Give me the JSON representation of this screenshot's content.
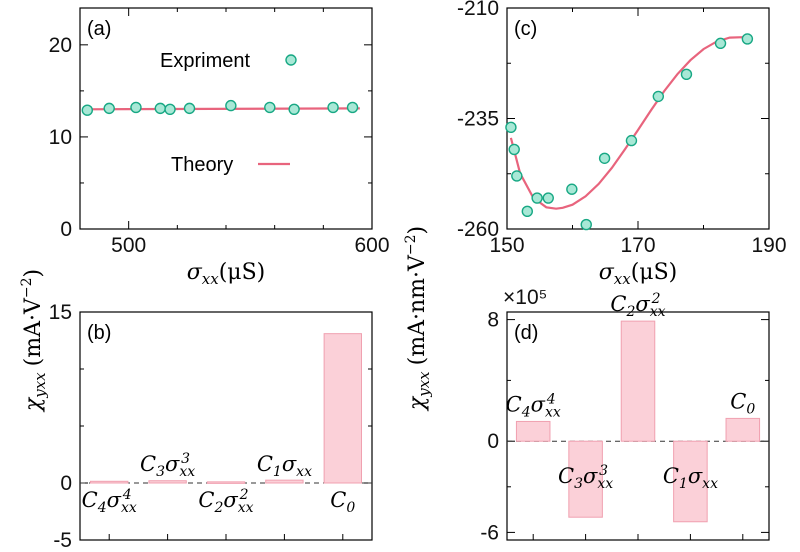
{
  "colors": {
    "curve": "#e8647d",
    "point_fill": "#a8e8d6",
    "point_stroke": "#18a884",
    "bar_fill": "#fbd0d8",
    "bar_stroke": "#f0a0b0"
  },
  "shared": {
    "ylabel_left": "χ_yxx (mA·V⁻²)",
    "ylabel_right": "χ_yxx (mA·nm·V⁻²)",
    "xlabel": "σ_xx(μS)"
  },
  "chart_data": [
    {
      "id": "a",
      "panel_label": "(a)",
      "type": "scatter",
      "xlim": [
        480,
        600
      ],
      "ylim": [
        0,
        24
      ],
      "x_ticks": [
        500,
        600
      ],
      "x_ticklabels": [
        "500",
        "600"
      ],
      "x_minor_ticks": [
        520,
        540,
        560,
        580
      ],
      "y_ticks": [
        0,
        10,
        20
      ],
      "y_ticklabels": [
        "0",
        "10",
        "20"
      ],
      "y_minor_ticks": [
        5,
        15
      ],
      "xlabel": "σxx(μS)",
      "series": [
        {
          "name": "Expriment",
          "kind": "points",
          "x": [
            483,
            492,
            503,
            513,
            517,
            525,
            542,
            558,
            568,
            584,
            592
          ],
          "y": [
            12.9,
            13.1,
            13.2,
            13.1,
            13.0,
            13.1,
            13.4,
            13.2,
            13.0,
            13.2,
            13.2
          ]
        },
        {
          "name": "Theory",
          "kind": "line",
          "x": [
            481,
            595
          ],
          "y": [
            13.0,
            13.1
          ]
        }
      ],
      "legend": [
        {
          "label": "Expriment",
          "marker": "circle"
        },
        {
          "label": "Theory",
          "marker": "line"
        }
      ]
    },
    {
      "id": "b",
      "panel_label": "(b)",
      "type": "bar",
      "ylim": [
        -5,
        15
      ],
      "y_ticks": [
        -5,
        0,
        15
      ],
      "y_ticklabels": [
        "-5",
        "0",
        "15"
      ],
      "y_minor_ticks": [
        5,
        10
      ],
      "categories": [
        "C4σxx^4",
        "C3σxx^3",
        "C2σxx^2",
        "C1σxx",
        "C0"
      ],
      "values": [
        0.15,
        0.2,
        0.1,
        0.25,
        13.1
      ]
    },
    {
      "id": "c",
      "panel_label": "(c)",
      "type": "scatter",
      "xlim": [
        150,
        190
      ],
      "ylim": [
        -260,
        -210
      ],
      "x_ticks": [
        150,
        170,
        190
      ],
      "x_ticklabels": [
        "150",
        "170",
        "190"
      ],
      "x_minor_ticks": [
        160,
        180
      ],
      "y_ticks": [
        -260,
        -235,
        -210
      ],
      "y_ticklabels": [
        "-260",
        "-235",
        "-210"
      ],
      "y_minor_ticks": [
        -247.5,
        -222.5
      ],
      "xlabel": "σxx(μS)",
      "series": [
        {
          "name": "",
          "kind": "points",
          "x": [
            150.6,
            151.1,
            151.5,
            153.1,
            154.6,
            156.3,
            159.9,
            162.1,
            164.9,
            169.0,
            173.1,
            177.4,
            182.6,
            186.7
          ],
          "y": [
            -237,
            -242,
            -248,
            -256,
            -253,
            -253,
            -251,
            -259,
            -244,
            -240,
            -230,
            -225,
            -218,
            -217
          ]
        },
        {
          "name": "",
          "kind": "line",
          "x": [
            150.6,
            152,
            154,
            156,
            157.5,
            158.5,
            160,
            162,
            164,
            166,
            168,
            170,
            172,
            174,
            176,
            178,
            180,
            182,
            184,
            186,
            187
          ],
          "y": [
            -239.4,
            -247.4,
            -252.9,
            -255.1,
            -255.4,
            -255.2,
            -254.5,
            -252.6,
            -249.8,
            -246.2,
            -242.0,
            -237.6,
            -233.1,
            -228.8,
            -225.0,
            -221.8,
            -219.3,
            -217.6,
            -216.7,
            -216.6,
            -216.7
          ]
        }
      ]
    },
    {
      "id": "d",
      "panel_label": "(d)",
      "type": "bar",
      "multiplier_label": "×10⁵",
      "ylim": [
        -6.5,
        8.5
      ],
      "y_ticks": [
        -6,
        0,
        8
      ],
      "y_ticklabels": [
        "-6",
        "0",
        "8"
      ],
      "y_minor_ticks": [
        -3,
        4
      ],
      "categories": [
        "C4σxx^4",
        "C3σxx^3",
        "C2σxx^2",
        "C1σxx",
        "C0"
      ],
      "values": [
        1.3,
        -5.0,
        7.9,
        -5.3,
        1.5
      ]
    }
  ]
}
